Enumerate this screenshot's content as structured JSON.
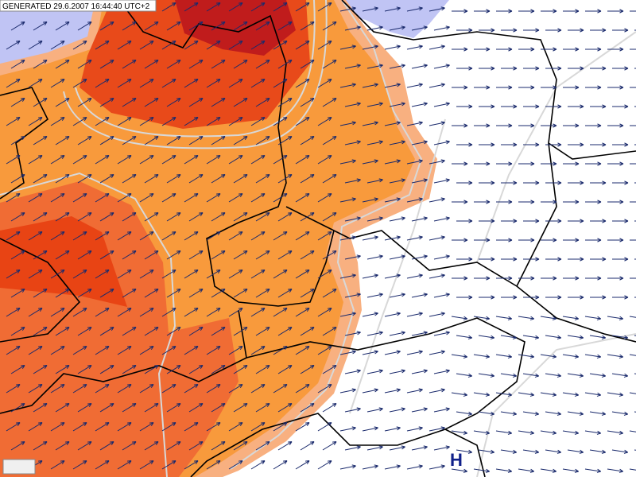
{
  "header": {
    "generated": "GENERATED 29.6.2007 16:44:40 UTC+2"
  },
  "map": {
    "pressure_label": "H"
  }
}
